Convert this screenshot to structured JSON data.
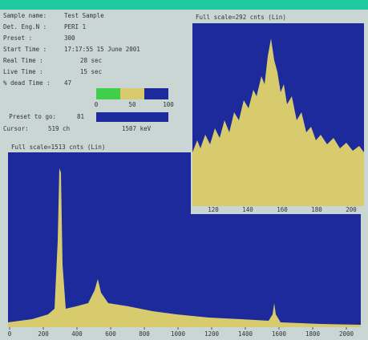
{
  "info": {
    "rows": [
      {
        "label": "Sample name:",
        "value": "Test Sample"
      },
      {
        "label": "Det. Eng.N :",
        "value": "PERI 1"
      },
      {
        "label": "Preset    :",
        "value": "300"
      },
      {
        "label": "Start  Time :",
        "value": "17:17:55 15 June 2001"
      },
      {
        "label": "Real   Time :",
        "value": "28 sec"
      },
      {
        "label": "Live   Time :",
        "value": "15 sec"
      },
      {
        "label": "% dead Time :",
        "value": "47"
      }
    ],
    "dead_scale": [
      "0",
      "50",
      "100"
    ],
    "preset_to_go": {
      "label": "Preset to go:",
      "value": "81"
    },
    "cursor": {
      "label": "Cursor:",
      "channel": "519 ch",
      "energy": "1507 keV"
    }
  },
  "main_plot": {
    "title": "Full scale=1513 cnts (Lin)",
    "x_labels": [
      "0",
      "200",
      "400",
      "600",
      "800",
      "1000",
      "1200",
      "1400",
      "1600",
      "1800",
      "2000"
    ]
  },
  "inset_plot": {
    "title": "Full scale=292 cnts (Lin)",
    "x_labels": [
      "120",
      "140",
      "160",
      "180",
      "200"
    ]
  }
}
